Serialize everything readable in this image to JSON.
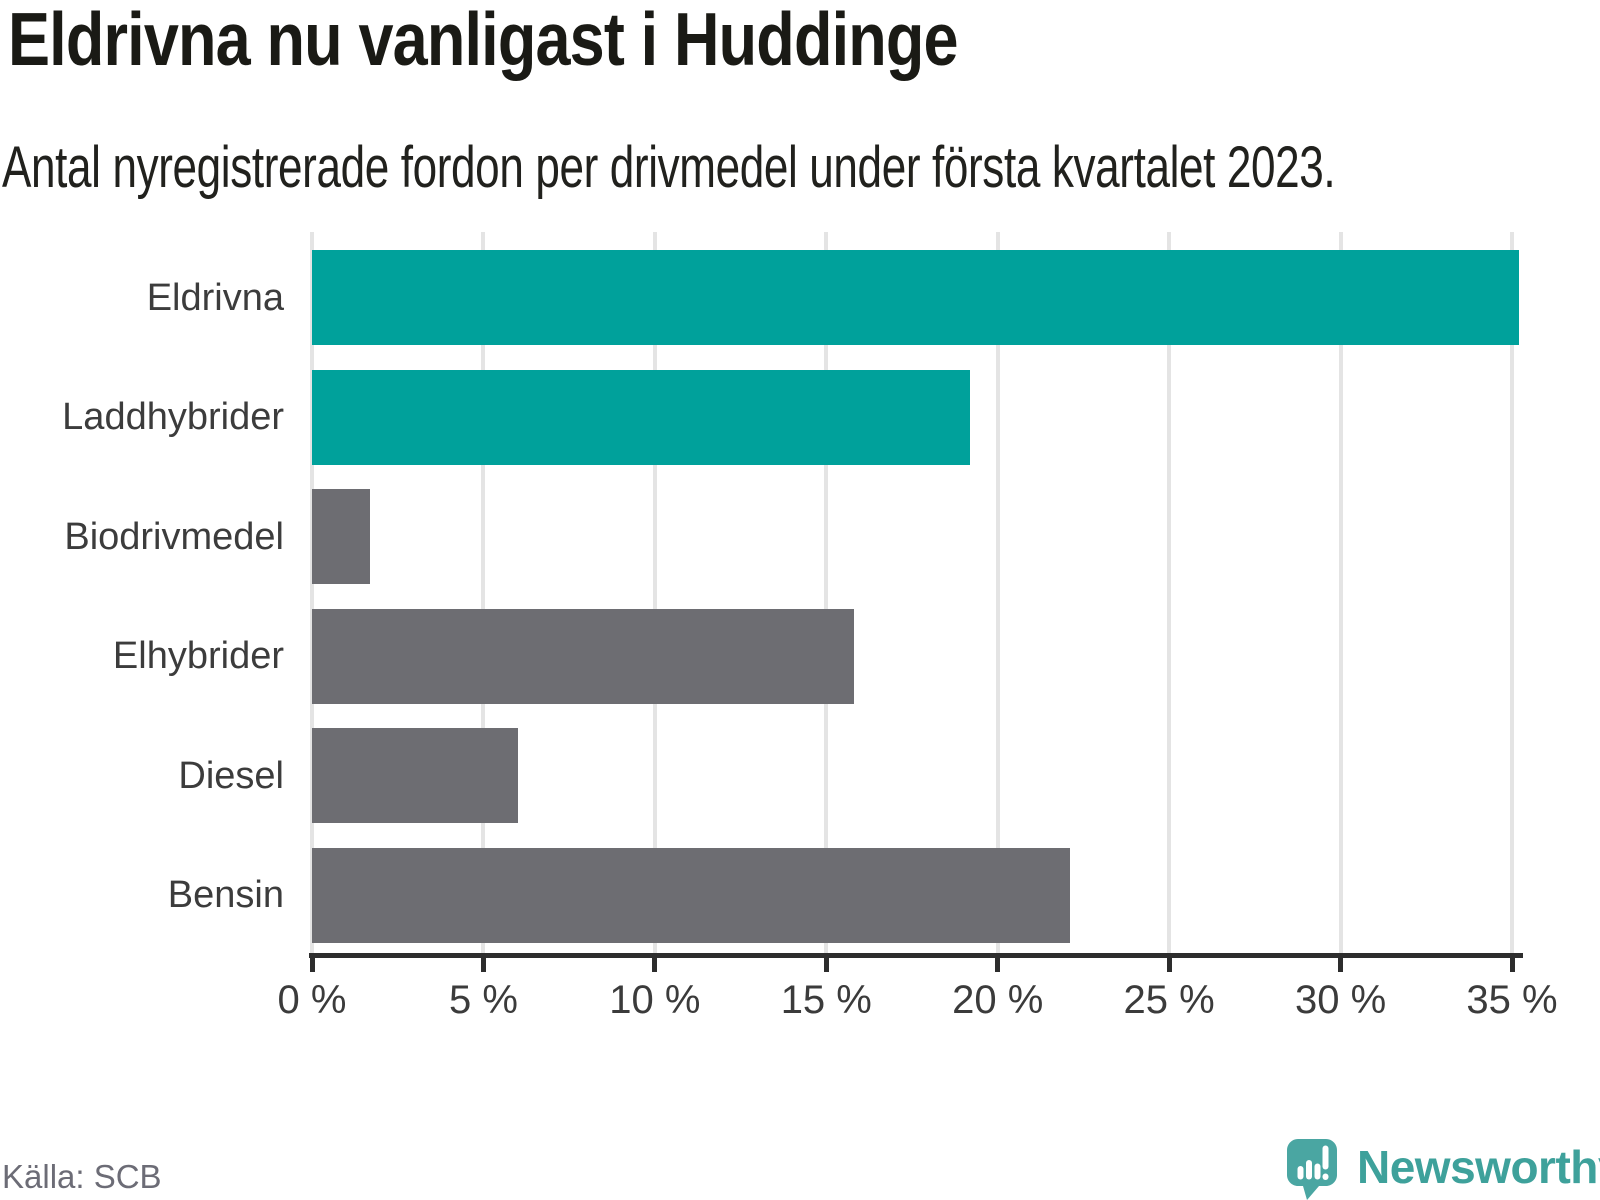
{
  "chart_data": {
    "type": "bar",
    "orientation": "horizontal",
    "title": "Eldrivna nu vanligast i Huddinge",
    "subtitle": "Antal nyregistrerade fordon per drivmedel under första kvartalet 2023.",
    "categories": [
      "Eldrivna",
      "Laddhybrider",
      "Biodrivmedel",
      "Elhybrider",
      "Diesel",
      "Bensin"
    ],
    "values": [
      35.2,
      19.2,
      1.7,
      15.8,
      6.0,
      22.1
    ],
    "unit": "%",
    "bar_colors": [
      "#00a19b",
      "#00a19b",
      "#6d6d72",
      "#6d6d72",
      "#6d6d72",
      "#6d6d72"
    ],
    "xlim": [
      0,
      35
    ],
    "x_tick_step": 5,
    "x_ticks": [
      "0 %",
      "5 %",
      "10 %",
      "15 %",
      "20 %",
      "25 %",
      "30 %",
      "35 %"
    ],
    "grid": true,
    "legend": "none",
    "value_labels": "none"
  },
  "colors": {
    "bar_highlight": "#00a19b",
    "bar_neutral": "#6d6d72",
    "gridline": "#e4e4e4",
    "axis": "#2d2d2d",
    "brand_teal": "#3ea19b",
    "logo_bubble": "#4aa6a2"
  },
  "footer": {
    "source": "Källa: SCB",
    "brand": "Newsworthy"
  }
}
